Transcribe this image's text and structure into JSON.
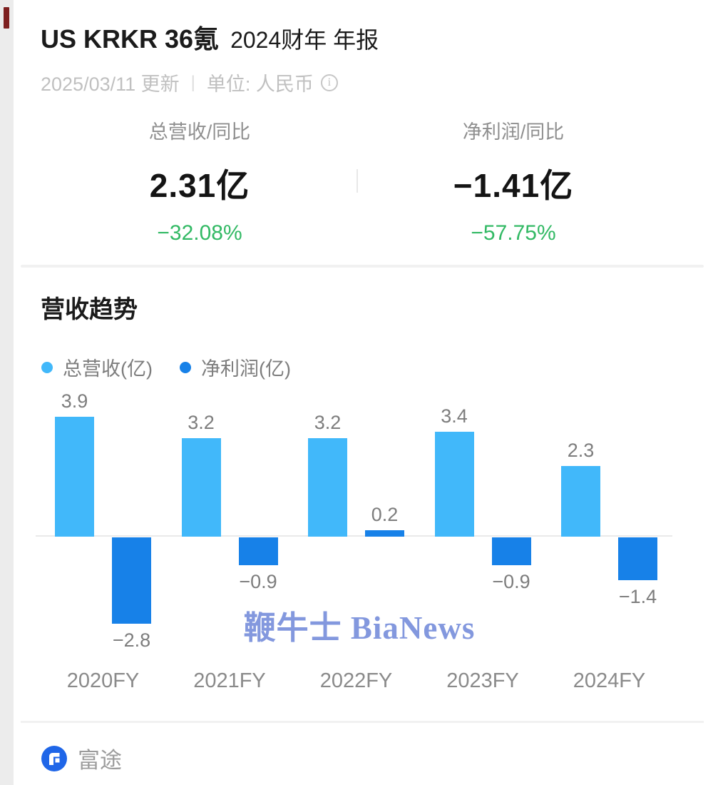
{
  "header": {
    "title_main": "US KRKR 36氪",
    "title_sub": "2024财年 年报",
    "updated": "2025/03/11 更新",
    "separator": "|",
    "unit": "单位: 人民币",
    "info_icon_glyph": "i"
  },
  "metrics": [
    {
      "label": "总营收/同比",
      "value": "2.31亿",
      "change": "−32.08%"
    },
    {
      "label": "净利润/同比",
      "value": "−1.41亿",
      "change": "−57.75%"
    }
  ],
  "section_title": "营收趋势",
  "chart_data": {
    "type": "bar",
    "title": "营收趋势",
    "categories": [
      "2020FY",
      "2021FY",
      "2022FY",
      "2023FY",
      "2024FY"
    ],
    "series": [
      {
        "name": "总营收(亿)",
        "color": "#41b8fa",
        "values": [
          3.9,
          3.2,
          3.2,
          3.4,
          2.3
        ],
        "labels": [
          "3.9",
          "3.2",
          "3.2",
          "3.4",
          "2.3"
        ]
      },
      {
        "name": "净利润(亿)",
        "color": "#1781e8",
        "values": [
          -2.8,
          -0.9,
          0.2,
          -0.9,
          -1.4
        ],
        "labels": [
          "−2.8",
          "−0.9",
          "0.2",
          "−0.9",
          "−1.4"
        ]
      }
    ],
    "ylim": [
      -3.2,
      4.4
    ],
    "baseline": 0,
    "grid": false,
    "legend_position": "top-left",
    "value_labels": true,
    "xlabel": "",
    "ylabel": ""
  },
  "watermark": "鞭牛士 BiaNews",
  "footer": {
    "brand": "富途"
  },
  "colors": {
    "revenue_bar": "#41b8fa",
    "profit_bar": "#1781e8",
    "change_green": "#32b964",
    "watermark_blue": "#8398de",
    "futu_blue": "#1f66e8",
    "axis_gray": "#eaeaea"
  }
}
